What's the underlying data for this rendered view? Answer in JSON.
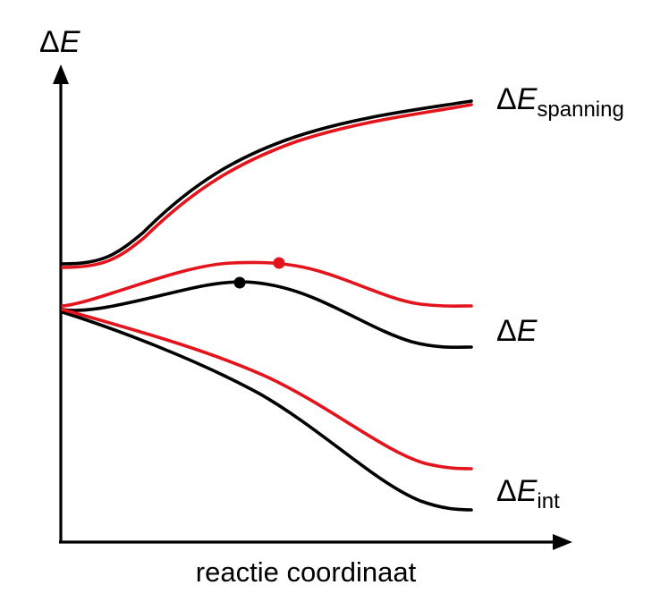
{
  "diagram": {
    "y_axis_label": {
      "delta": "Δ",
      "symbol": "E"
    },
    "x_axis_label": "reactie coordinaat",
    "curve_labels": {
      "strain": {
        "delta": "Δ",
        "symbol": "E",
        "subscript": "spanning"
      },
      "total": {
        "delta": "Δ",
        "symbol": "E"
      },
      "interaction": {
        "delta": "Δ",
        "symbol": "E",
        "subscript": "int"
      }
    },
    "colors": {
      "black": "#000000",
      "red": "#e3141b"
    },
    "series_colors": [
      "black",
      "red"
    ]
  }
}
